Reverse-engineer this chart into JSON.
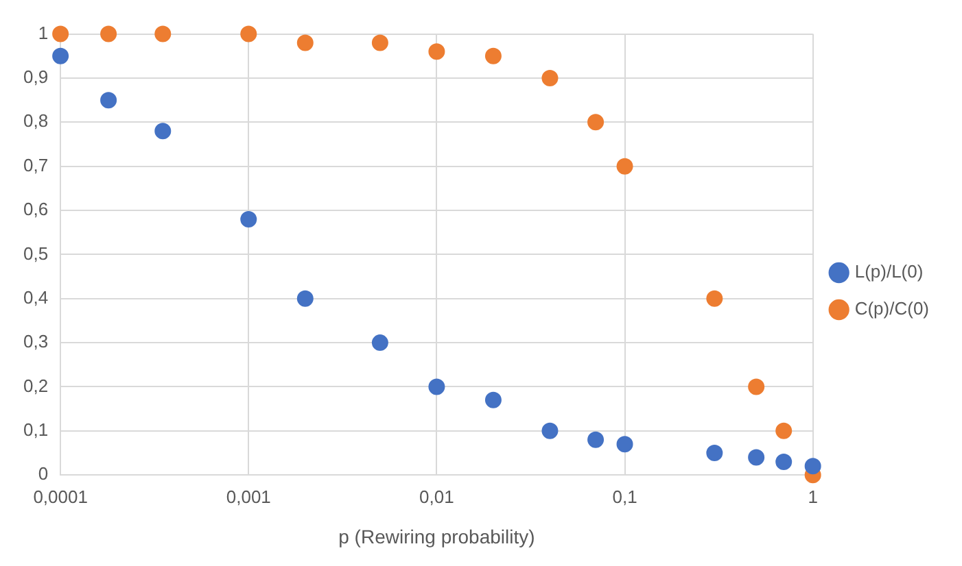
{
  "chart_data": {
    "type": "scatter",
    "xlabel": "p (Rewiring probability)",
    "log": "x",
    "grid": true,
    "legend": "right",
    "marker": "circle",
    "x": [
      0.0001,
      0.00018,
      0.00035,
      0.001,
      0.002,
      0.005,
      0.01,
      0.02,
      0.04,
      0.07,
      0.1,
      0.3,
      0.5,
      0.7,
      1
    ],
    "series": [
      {
        "name": "L(p)/L(0)",
        "color": "#4472c4",
        "values": [
          0.95,
          0.85,
          0.78,
          0.58,
          0.4,
          0.3,
          0.2,
          0.17,
          0.1,
          0.08,
          0.07,
          0.05,
          0.04,
          0.03,
          0.02
        ]
      },
      {
        "name": "C(p)/C(0)",
        "color": "#ed7d31",
        "values": [
          1,
          1,
          1,
          1,
          0.98,
          0.98,
          0.96,
          0.95,
          0.9,
          0.8,
          0.7,
          0.4,
          0.2,
          0.1,
          0
        ]
      }
    ],
    "xlim": [
      0.0001,
      1
    ],
    "xticks": [
      {
        "value": 0.0001,
        "label": "0,0001"
      },
      {
        "value": 0.001,
        "label": "0,001"
      },
      {
        "value": 0.01,
        "label": "0,01"
      },
      {
        "value": 0.1,
        "label": "0,1"
      },
      1
    ],
    "ylim": [
      0,
      1
    ],
    "yticks": [
      0,
      {
        "value": 0.1,
        "label": "0,1"
      },
      {
        "value": 0.2,
        "label": "0,2"
      },
      {
        "value": 0.3,
        "label": "0,3"
      },
      {
        "value": 0.4,
        "label": "0,4"
      },
      {
        "value": 0.5,
        "label": "0,5"
      },
      {
        "value": 0.6,
        "label": "0,6"
      },
      {
        "value": 0.7,
        "label": "0,7"
      },
      {
        "value": 0.8,
        "label": "0,8"
      },
      {
        "value": 0.9,
        "label": "0,9"
      },
      1
    ]
  }
}
